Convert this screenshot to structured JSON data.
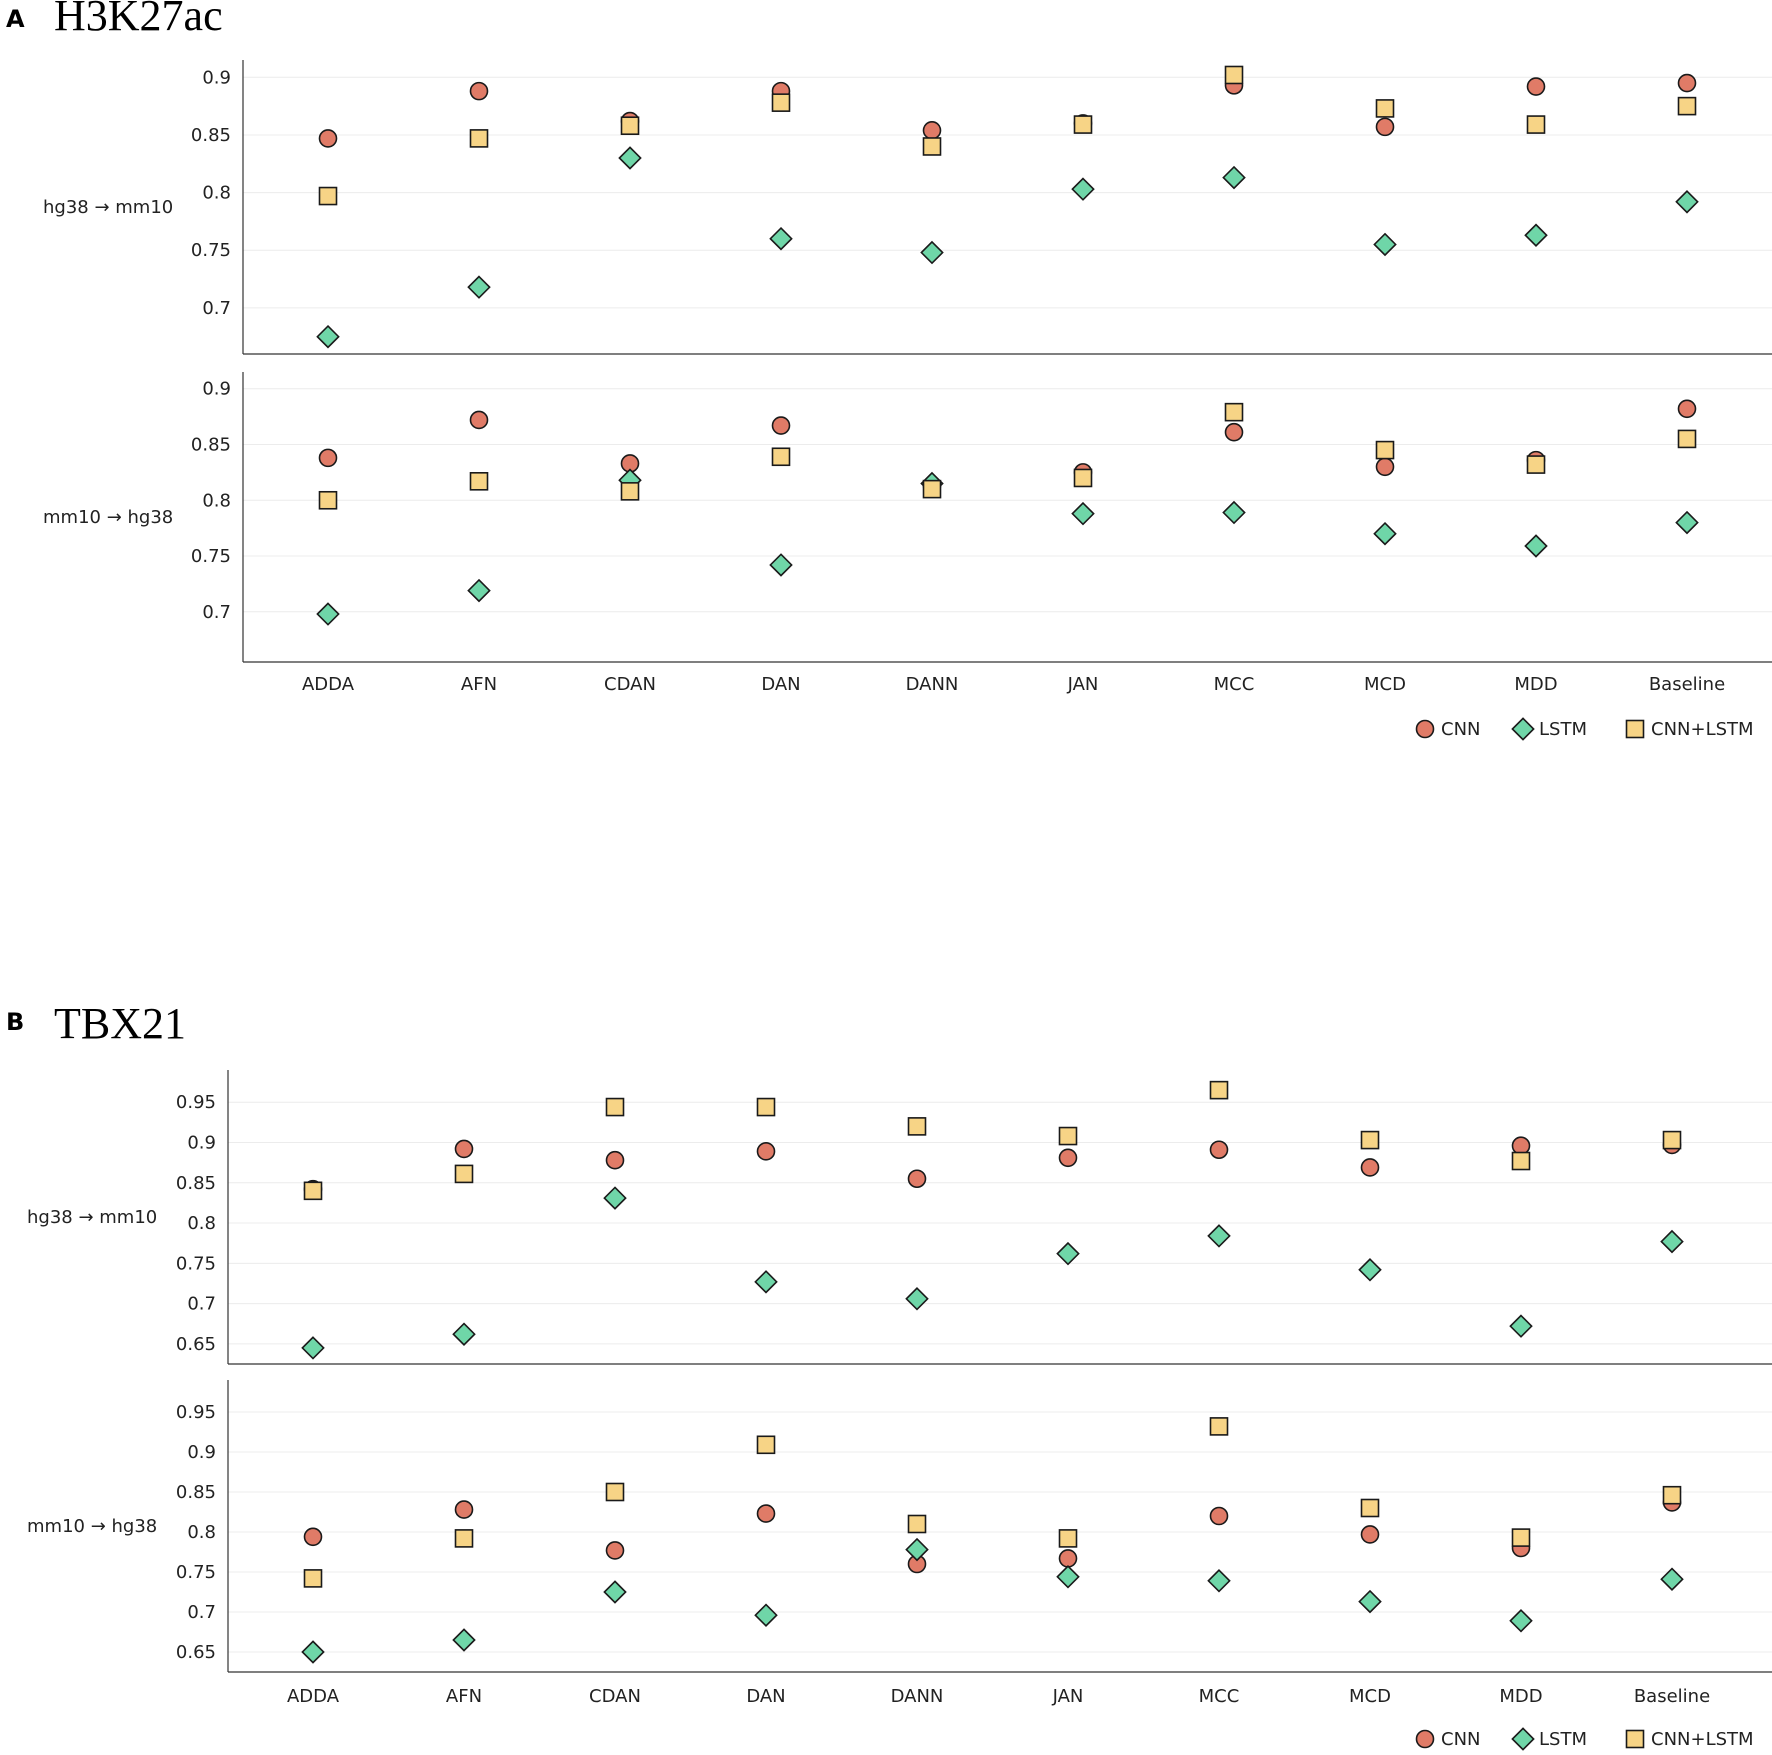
{
  "chart_data": [
    {
      "panel": "A",
      "type": "scatter",
      "title": "H3K27ac",
      "categories": [
        "ADDA",
        "AFN",
        "CDAN",
        "DAN",
        "DANN",
        "JAN",
        "MCC",
        "MCD",
        "MDD",
        "Baseline"
      ],
      "legend": [
        "CNN",
        "LSTM",
        "CNN+LSTM"
      ],
      "colors": {
        "CNN": "#e07b67",
        "LSTM": "#6fd6a8",
        "CNN+LSTM": "#f7d486"
      },
      "markers": {
        "CNN": "circle",
        "LSTM": "diamond",
        "CNN+LSTM": "square"
      },
      "legend_position": "bottom-right",
      "subplots": [
        {
          "ylabel": "hg38 → mm10",
          "ylim": [
            0.66,
            0.915
          ],
          "yticks": [
            0.7,
            0.75,
            0.8,
            0.85,
            0.9
          ],
          "ytick_labels": [
            "0.7",
            "0.75",
            "0.8",
            "0.85",
            "0.9"
          ],
          "series": [
            {
              "name": "CNN",
              "values": [
                0.847,
                0.888,
                0.862,
                0.888,
                0.854,
                0.86,
                0.893,
                0.857,
                0.892,
                0.895
              ]
            },
            {
              "name": "LSTM",
              "values": [
                0.675,
                0.718,
                0.83,
                0.76,
                0.748,
                0.803,
                0.813,
                0.755,
                0.763,
                0.792
              ]
            },
            {
              "name": "CNN+LSTM",
              "values": [
                0.797,
                0.847,
                0.858,
                0.878,
                0.84,
                0.859,
                0.902,
                0.873,
                0.859,
                0.875
              ]
            }
          ]
        },
        {
          "ylabel": "mm10 → hg38",
          "ylim": [
            0.655,
            0.915
          ],
          "yticks": [
            0.7,
            0.75,
            0.8,
            0.85,
            0.9
          ],
          "ytick_labels": [
            "0.7",
            "0.75",
            "0.8",
            "0.85",
            "0.9"
          ],
          "series": [
            {
              "name": "CNN",
              "values": [
                0.838,
                0.872,
                0.833,
                0.867,
                0.813,
                0.825,
                0.861,
                0.83,
                0.836,
                0.882
              ]
            },
            {
              "name": "LSTM",
              "values": [
                0.698,
                0.719,
                0.818,
                0.742,
                0.815,
                0.788,
                0.789,
                0.77,
                0.759,
                0.78
              ]
            },
            {
              "name": "CNN+LSTM",
              "values": [
                0.8,
                0.817,
                0.808,
                0.839,
                0.81,
                0.82,
                0.879,
                0.845,
                0.832,
                0.855
              ]
            }
          ]
        }
      ]
    },
    {
      "panel": "B",
      "type": "scatter",
      "title": "TBX21",
      "categories": [
        "ADDA",
        "AFN",
        "CDAN",
        "DAN",
        "DANN",
        "JAN",
        "MCC",
        "MCD",
        "MDD",
        "Baseline"
      ],
      "legend": [
        "CNN",
        "LSTM",
        "CNN+LSTM"
      ],
      "colors": {
        "CNN": "#e07b67",
        "LSTM": "#6fd6a8",
        "CNN+LSTM": "#f7d486"
      },
      "markers": {
        "CNN": "circle",
        "LSTM": "diamond",
        "CNN+LSTM": "square"
      },
      "legend_position": "bottom-right",
      "subplots": [
        {
          "ylabel": "hg38 → mm10",
          "ylim": [
            0.625,
            0.99
          ],
          "yticks": [
            0.65,
            0.7,
            0.75,
            0.8,
            0.85,
            0.9,
            0.95
          ],
          "ytick_labels": [
            "0.65",
            "0.7",
            "0.75",
            "0.8",
            "0.85",
            "0.9",
            "0.95"
          ],
          "series": [
            {
              "name": "CNN",
              "values": [
                0.842,
                0.892,
                0.878,
                0.889,
                0.855,
                0.881,
                0.891,
                0.869,
                0.896,
                0.897
              ]
            },
            {
              "name": "LSTM",
              "values": [
                0.645,
                0.662,
                0.831,
                0.727,
                0.706,
                0.762,
                0.784,
                0.742,
                0.672,
                0.777
              ]
            },
            {
              "name": "CNN+LSTM",
              "values": [
                0.84,
                0.861,
                0.944,
                0.944,
                0.92,
                0.908,
                0.965,
                0.903,
                0.877,
                0.903
              ]
            }
          ]
        },
        {
          "ylabel": "mm10 → hg38",
          "ylim": [
            0.625,
            0.99
          ],
          "yticks": [
            0.65,
            0.7,
            0.75,
            0.8,
            0.85,
            0.9,
            0.95
          ],
          "ytick_labels": [
            "0.65",
            "0.7",
            "0.75",
            "0.8",
            "0.85",
            "0.9",
            "0.95"
          ],
          "series": [
            {
              "name": "CNN",
              "values": [
                0.794,
                0.828,
                0.777,
                0.823,
                0.76,
                0.767,
                0.82,
                0.797,
                0.78,
                0.837
              ]
            },
            {
              "name": "LSTM",
              "values": [
                0.65,
                0.665,
                0.725,
                0.696,
                0.778,
                0.744,
                0.739,
                0.713,
                0.689,
                0.741
              ]
            },
            {
              "name": "CNN+LSTM",
              "values": [
                0.742,
                0.792,
                0.85,
                0.909,
                0.81,
                0.792,
                0.932,
                0.83,
                0.793,
                0.846
              ]
            }
          ]
        }
      ]
    }
  ]
}
